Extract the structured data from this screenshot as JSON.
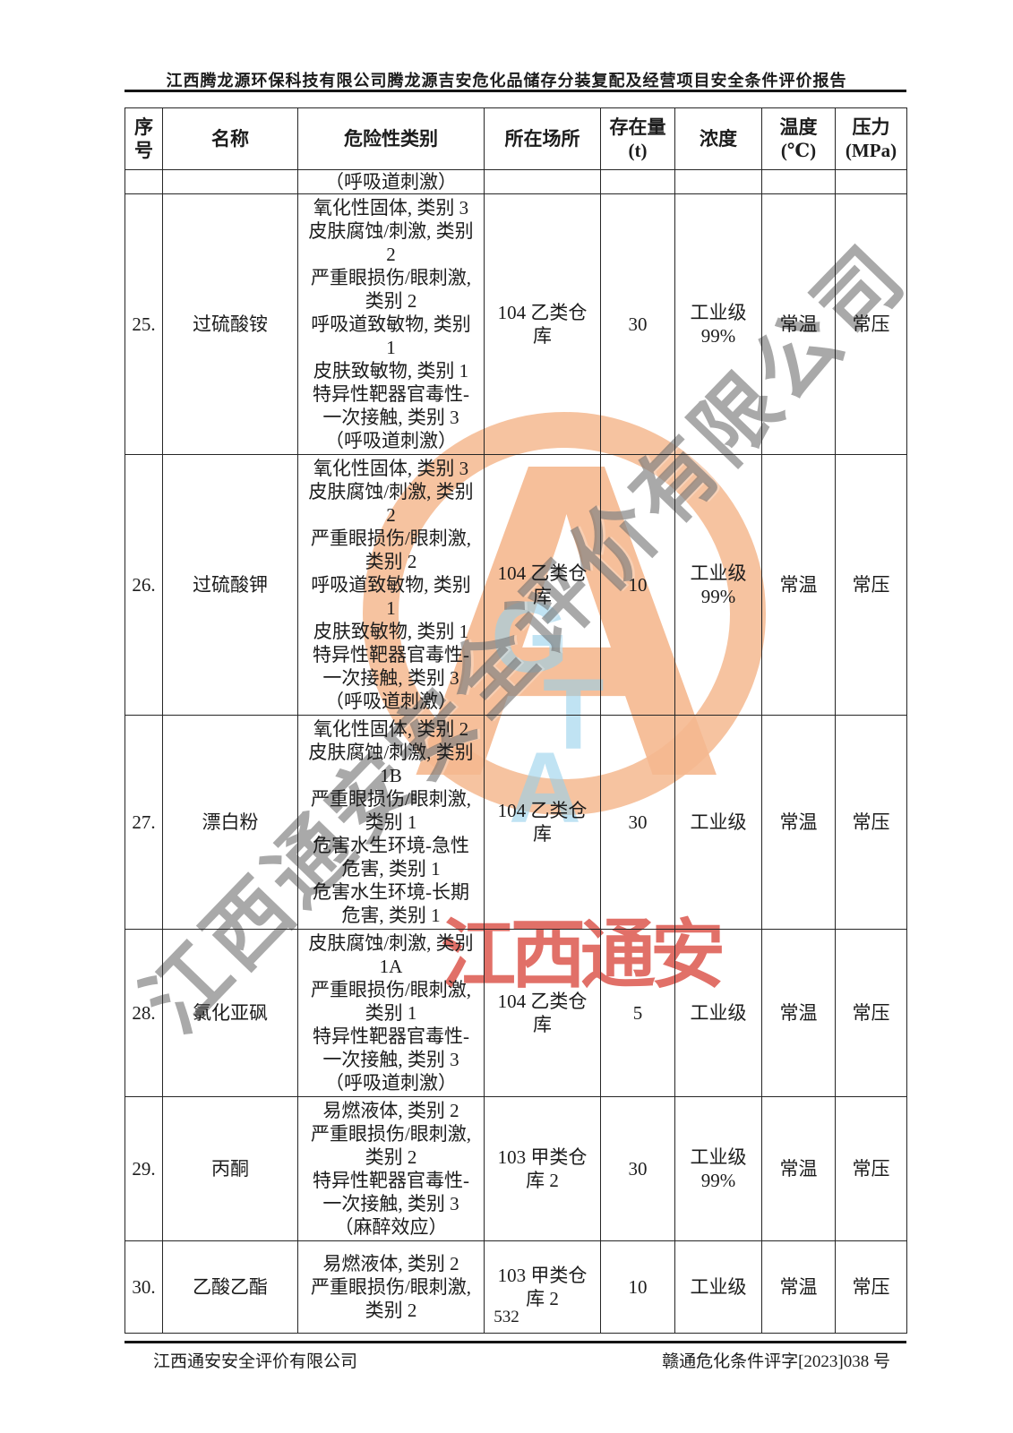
{
  "page": {
    "header_title": "江西腾龙源环保科技有限公司腾龙源吉安危化品储存分装复配及经营项目安全条件评价报告",
    "page_number": "532",
    "footer_left": "江西通安安全评价有限公司",
    "footer_right": "赣通危化条件评字[2023]038 号"
  },
  "watermarks": {
    "diagonal_text": "江西通安安全评价有限公司",
    "red_stamp_text": "江西通安",
    "logo_letter": "A",
    "logo_sub_g": "G",
    "logo_sub_t": "T",
    "logo_sub_a": "A",
    "colors": {
      "orange": "#f5bc96",
      "blue": "#96d0eb",
      "red": "#d8483e",
      "gray": "#707070"
    }
  },
  "table": {
    "headers": [
      "序\n号",
      "名称",
      "危险性类别",
      "所在场所",
      "存在量\n(t)",
      "浓度",
      "温度\n(℃)",
      "压力\n(MPa)"
    ],
    "continuation_row": {
      "hazard": "（呼吸道刺激）"
    },
    "rows": [
      {
        "no": "25.",
        "name": "过硫酸铵",
        "hazard": "氧化性固体, 类别 3\n皮肤腐蚀/刺激, 类别\n2\n严重眼损伤/眼刺激,\n类别 2\n呼吸道致敏物, 类别\n1\n皮肤致敏物, 类别 1\n特异性靶器官毒性-\n一次接触, 类别 3\n（呼吸道刺激）",
        "location": "104 乙类仓\n库",
        "amount": "30",
        "concentration": "工业级\n99%",
        "temperature": "常温",
        "pressure": "常压"
      },
      {
        "no": "26.",
        "name": "过硫酸钾",
        "hazard": "氧化性固体, 类别 3\n皮肤腐蚀/刺激, 类别\n2\n严重眼损伤/眼刺激,\n类别 2\n呼吸道致敏物, 类别\n1\n皮肤致敏物, 类别 1\n特异性靶器官毒性-\n一次接触, 类别 3\n（呼吸道刺激）",
        "location": "104 乙类仓\n库",
        "amount": "10",
        "concentration": "工业级\n99%",
        "temperature": "常温",
        "pressure": "常压"
      },
      {
        "no": "27.",
        "name": "漂白粉",
        "hazard": "氧化性固体, 类别 2\n皮肤腐蚀/刺激, 类别\n1B\n严重眼损伤/眼刺激,\n类别 1\n危害水生环境-急性\n危害, 类别 1\n危害水生环境-长期\n危害, 类别 1",
        "location": "104 乙类仓\n库",
        "amount": "30",
        "concentration": "工业级",
        "temperature": "常温",
        "pressure": "常压"
      },
      {
        "no": "28.",
        "name": "氯化亚砜",
        "hazard": "皮肤腐蚀/刺激, 类别\n1A\n严重眼损伤/眼刺激,\n类别 1\n特异性靶器官毒性-\n一次接触, 类别 3\n（呼吸道刺激）",
        "location": "104 乙类仓\n库",
        "amount": "5",
        "concentration": "工业级",
        "temperature": "常温",
        "pressure": "常压"
      },
      {
        "no": "29.",
        "name": "丙酮",
        "hazard": "易燃液体, 类别 2\n严重眼损伤/眼刺激,\n类别 2\n特异性靶器官毒性-\n一次接触, 类别 3\n（麻醉效应）",
        "location": "103 甲类仓\n库 2",
        "amount": "30",
        "concentration": "工业级\n99%",
        "temperature": "常温",
        "pressure": "常压"
      },
      {
        "no": "30.",
        "name": "乙酸乙酯",
        "hazard": "易燃液体, 类别 2\n严重眼损伤/眼刺激,\n类别 2",
        "location": "103 甲类仓\n库 2",
        "amount": "10",
        "concentration": "工业级",
        "temperature": "常温",
        "pressure": "常压"
      }
    ]
  }
}
